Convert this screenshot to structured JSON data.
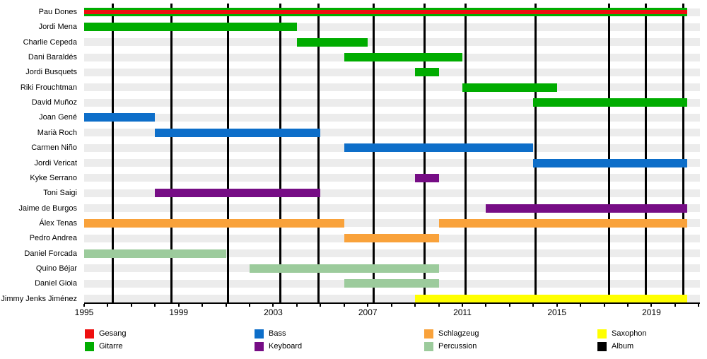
{
  "chart_data": {
    "type": "timeline",
    "title": "",
    "x_axis": {
      "start_year": 1995,
      "end_year": 2021.05,
      "tick_every_years": 1,
      "labels": [
        {
          "year": 1995,
          "text": "1995"
        },
        {
          "year": 1999,
          "text": "1999"
        },
        {
          "year": 2003,
          "text": "2003"
        },
        {
          "year": 2007,
          "text": "2007"
        },
        {
          "year": 2011,
          "text": "2011"
        },
        {
          "year": 2015,
          "text": "2015"
        },
        {
          "year": 2019,
          "text": "2019"
        }
      ]
    },
    "roles": {
      "Gesang": "#ee0f0f",
      "Gitarre": "#00ac00",
      "Bass": "#0d6ec9",
      "Keyboard": "#760d85",
      "Schlagzeug": "#f9a23b",
      "Percussion": "#9ccb9c",
      "Saxophon": "#ffff00",
      "Album": "#000000"
    },
    "row_stripe_color": "#ececec",
    "members": [
      {
        "name": "Pau Dones",
        "bars": [
          {
            "role": "Gitarre",
            "start": 1995,
            "end": 2020.5
          },
          {
            "role": "Gesang",
            "start": 1995,
            "end": 2020.5,
            "overlay": true
          }
        ]
      },
      {
        "name": "Jordi Mena",
        "bars": [
          {
            "role": "Gitarre",
            "start": 1995,
            "end": 2004
          }
        ]
      },
      {
        "name": "Charlie Cepeda",
        "bars": [
          {
            "role": "Gitarre",
            "start": 2004,
            "end": 2007
          }
        ]
      },
      {
        "name": "Dani Baraldés",
        "bars": [
          {
            "role": "Gitarre",
            "start": 2006,
            "end": 2011
          }
        ]
      },
      {
        "name": "Jordi Busquets",
        "bars": [
          {
            "role": "Gitarre",
            "start": 2009,
            "end": 2010
          }
        ]
      },
      {
        "name": "Riki Frouchtman",
        "bars": [
          {
            "role": "Gitarre",
            "start": 2011,
            "end": 2015
          }
        ]
      },
      {
        "name": "David Muñoz",
        "bars": [
          {
            "role": "Gitarre",
            "start": 2014,
            "end": 2020.5
          }
        ]
      },
      {
        "name": "Joan Gené",
        "bars": [
          {
            "role": "Bass",
            "start": 1995,
            "end": 1998
          }
        ]
      },
      {
        "name": "Marià Roch",
        "bars": [
          {
            "role": "Bass",
            "start": 1998,
            "end": 2005
          }
        ]
      },
      {
        "name": "Carmen Niño",
        "bars": [
          {
            "role": "Bass",
            "start": 2006,
            "end": 2014
          }
        ]
      },
      {
        "name": "Jordi Vericat",
        "bars": [
          {
            "role": "Bass",
            "start": 2014,
            "end": 2020.5
          }
        ]
      },
      {
        "name": "Kyke Serrano",
        "bars": [
          {
            "role": "Keyboard",
            "start": 2009,
            "end": 2010
          }
        ]
      },
      {
        "name": "Toni Saigi",
        "bars": [
          {
            "role": "Keyboard",
            "start": 1998,
            "end": 2005
          }
        ]
      },
      {
        "name": "Jaime de Burgos",
        "bars": [
          {
            "role": "Keyboard",
            "start": 2012,
            "end": 2020.5
          }
        ]
      },
      {
        "name": "Álex Tenas",
        "bars": [
          {
            "role": "Schlagzeug",
            "start": 1995,
            "end": 2006
          },
          {
            "role": "Schlagzeug",
            "start": 2010,
            "end": 2020.5
          }
        ]
      },
      {
        "name": "Pedro Andrea",
        "bars": [
          {
            "role": "Schlagzeug",
            "start": 2006,
            "end": 2010
          }
        ]
      },
      {
        "name": "Daniel Forcada",
        "bars": [
          {
            "role": "Percussion",
            "start": 1995,
            "end": 2001
          }
        ]
      },
      {
        "name": "Quino Béjar",
        "bars": [
          {
            "role": "Percussion",
            "start": 2002,
            "end": 2010
          }
        ]
      },
      {
        "name": "Daniel Gioia",
        "bars": [
          {
            "role": "Percussion",
            "start": 2006,
            "end": 2010
          }
        ]
      },
      {
        "name": "Jimmy Jenks Jiménez",
        "bars": [
          {
            "role": "Saxophon",
            "start": 2009,
            "end": 2020.5
          }
        ]
      }
    ],
    "album_release_lines": [
      1996.2,
      1998.7,
      2001.1,
      2003.3,
      2004.9,
      2007.25,
      2009.4,
      2011.15,
      2014.1,
      2017.2,
      2018.75,
      2020.35
    ],
    "legend": [
      {
        "label": "Gesang",
        "role": "Gesang",
        "color": "#ee0f0f"
      },
      {
        "label": "Gitarre",
        "role": "Gitarre",
        "color": "#00ac00"
      },
      {
        "label": "Bass",
        "role": "Bass",
        "color": "#0d6ec9"
      },
      {
        "label": "Keyboard",
        "role": "Keyboard",
        "color": "#760d85"
      },
      {
        "label": "Schlagzeug",
        "role": "Schlagzeug",
        "color": "#f9a23b"
      },
      {
        "label": "Percussion",
        "role": "Percussion",
        "color": "#9ccb9c"
      },
      {
        "label": "Saxophon",
        "role": "Saxophon",
        "color": "#ffff00"
      },
      {
        "label": "Album",
        "role": "Album",
        "color": "#000000"
      }
    ]
  }
}
